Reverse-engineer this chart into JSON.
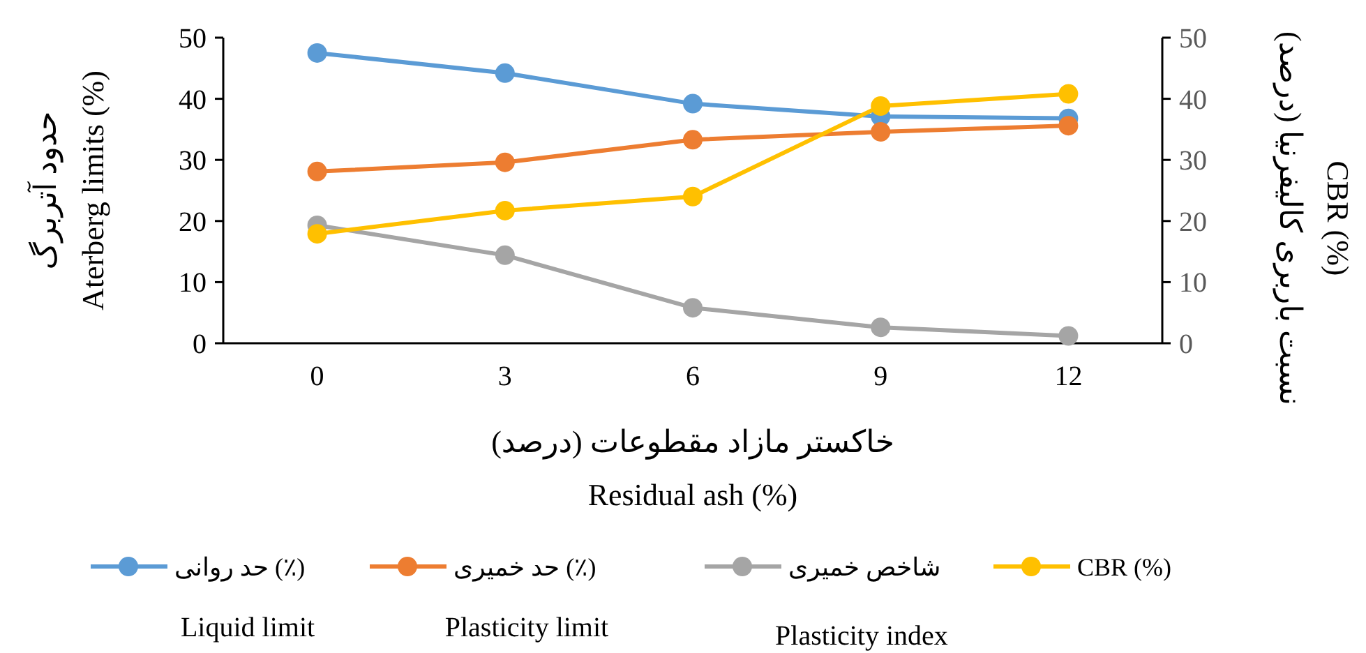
{
  "chart_data": {
    "type": "line",
    "categories": [
      "0",
      "3",
      "6",
      "9",
      "12"
    ],
    "xlabel": "خاکستر مازاد مقطوعات (درصد)\nResidual ash (%)",
    "ylabel": "حدود آتربرگ\nAterberg limits (%)",
    "y2label": "نسبت باربری کالیفرنیا (درصد)\nCBR (%)",
    "ylim": [
      0,
      50
    ],
    "yticks": [
      0,
      10,
      20,
      30,
      40,
      50
    ],
    "y2lim": [
      0,
      50
    ],
    "y2ticks": [
      0,
      10,
      20,
      30,
      40,
      50
    ],
    "grid": false,
    "legend": "bottom",
    "marker": "circle",
    "line_style": "solid",
    "series": [
      {
        "name": "حد روانی (٪)\nLiquid limit",
        "color": "#5b9bd5",
        "values": [
          47.5,
          44.2,
          39.2,
          37.1,
          36.8
        ]
      },
      {
        "name": "حد خمیری (٪)\nPlasticity limit",
        "color": "#ed7d31",
        "values": [
          28.1,
          29.6,
          33.3,
          34.6,
          35.6
        ]
      },
      {
        "name": "شاخص خمیری\nPlasticity index",
        "color": "#a5a5a5",
        "values": [
          19.3,
          14.4,
          5.8,
          2.6,
          1.2
        ]
      },
      {
        "name": "CBR (%)",
        "color": "#ffc000",
        "axis": "y2",
        "values": [
          17.9,
          21.7,
          24.0,
          38.8,
          40.8
        ]
      }
    ]
  }
}
